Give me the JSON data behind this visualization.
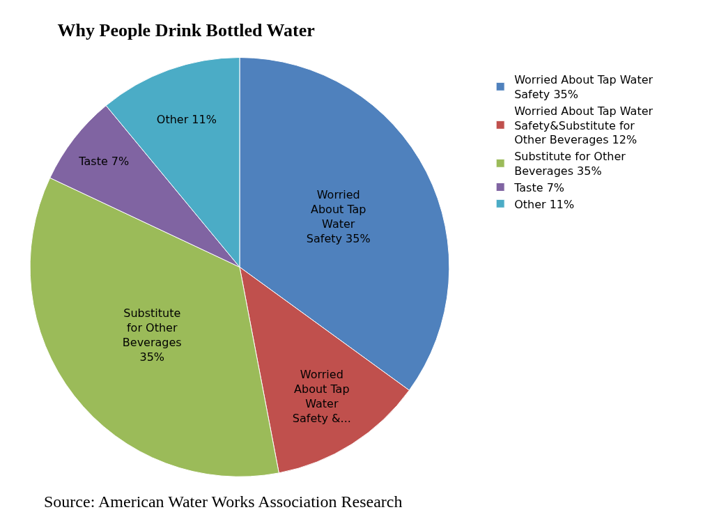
{
  "chart_data": {
    "type": "pie",
    "title": "Why People Drink Bottled Water",
    "categories": [
      "Worried About Tap Water Safety 35%",
      "Worried About Tap Water Safety&Substitute for Other Beverages 12%",
      "Substitute for Other Beverages 35%",
      "Taste 7%",
      "Other 11%"
    ],
    "values": [
      35,
      12,
      35,
      7,
      11
    ],
    "value_labels": [
      "Worried About Tap Water Safety 35%",
      "Worried About Tap Water Safety &...",
      "Substitute for Other Beverages 35%",
      "Taste 7%",
      "Other 11%"
    ],
    "colors": [
      "#4f81bd",
      "#c0504d",
      "#9bbb59",
      "#8064a2",
      "#4bacc6"
    ],
    "legend": "right",
    "annotations": [
      "Source: American Water Works Association Research"
    ]
  }
}
